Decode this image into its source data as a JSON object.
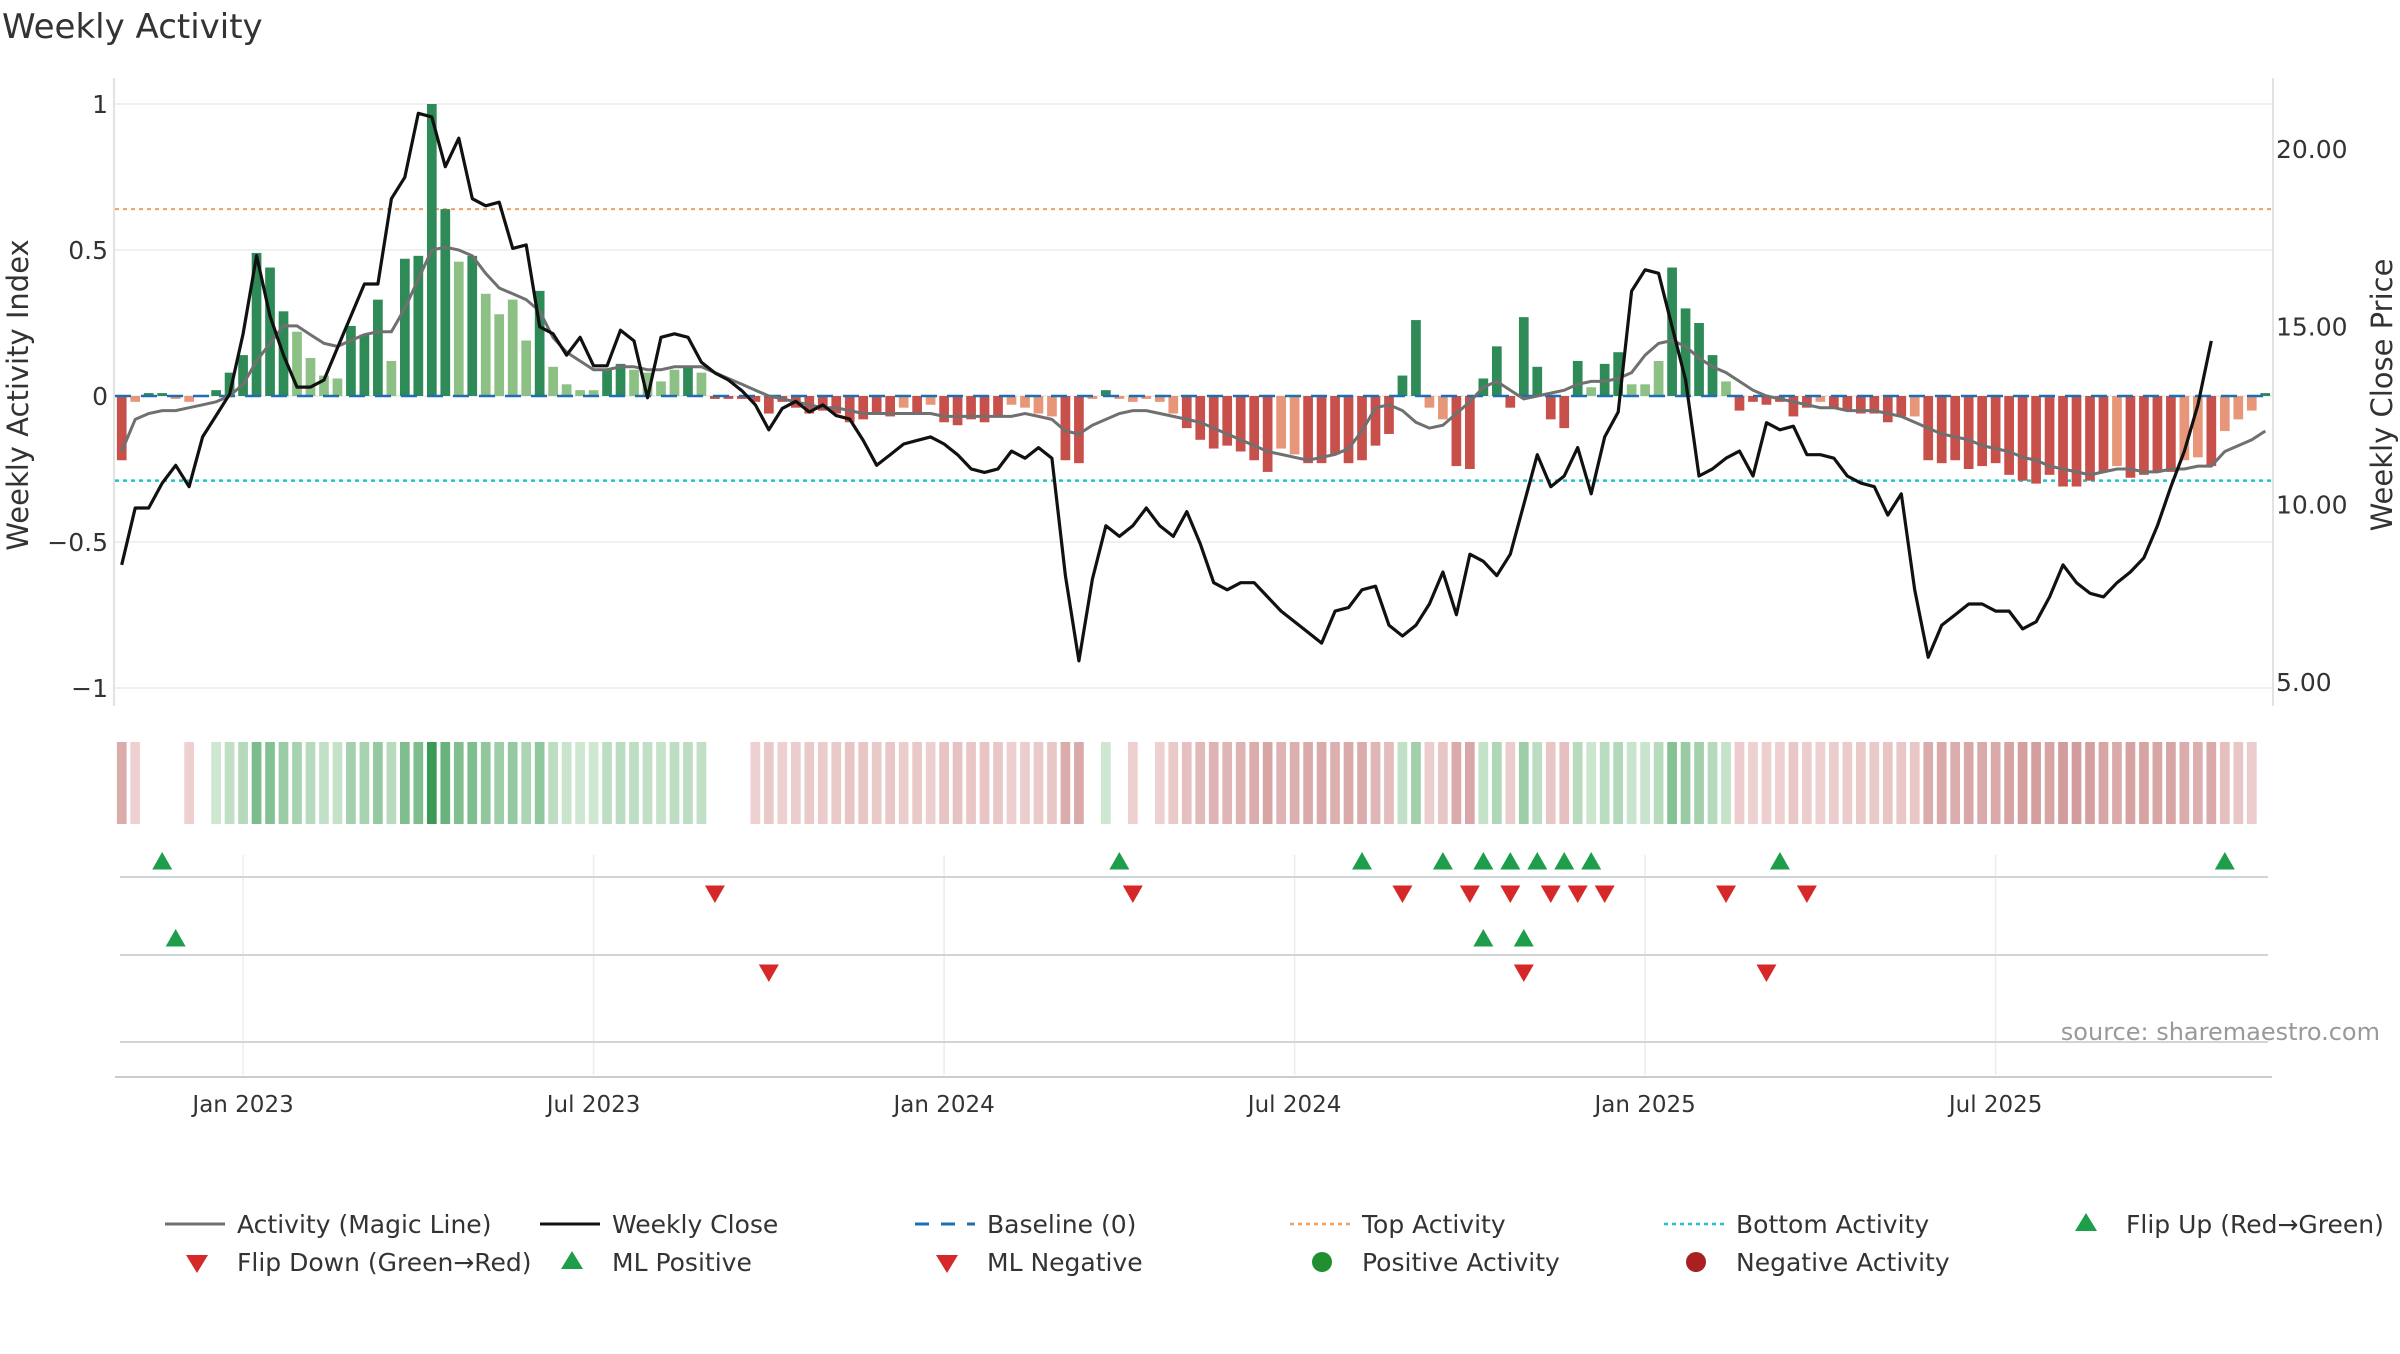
{
  "chart_data": {
    "type": "bar",
    "title": "Weekly Activity",
    "ylabel_left": "Weekly Activity Index",
    "ylabel_right": "Weekly Close Price",
    "source": "source: sharemaestro.com",
    "ylim_left": [
      -1.1,
      1.1
    ],
    "ylim_right": [
      4.5,
      22.5
    ],
    "left_ticks": [
      {
        "v": 1,
        "label": "1"
      },
      {
        "v": 0.5,
        "label": "0.5"
      },
      {
        "v": 0,
        "label": "0"
      },
      {
        "v": -0.5,
        "label": "−0.5"
      },
      {
        "v": -1,
        "label": "−1"
      }
    ],
    "right_ticks": [
      {
        "v": 20,
        "label": "20.00"
      },
      {
        "v": 15,
        "label": "15.00"
      },
      {
        "v": 10,
        "label": "10.00"
      },
      {
        "v": 5,
        "label": "5.00"
      }
    ],
    "x_ticks": [
      {
        "i": 9,
        "label": "Jan 2023"
      },
      {
        "i": 35,
        "label": "Jul 2023"
      },
      {
        "i": 61,
        "label": "Jan 2024"
      },
      {
        "i": 87,
        "label": "Jul 2024"
      },
      {
        "i": 113,
        "label": "Jan 2025"
      },
      {
        "i": 139,
        "label": "Jul 2025"
      }
    ],
    "top_activity": 0.64,
    "bottom_activity": -0.29,
    "activity": [
      -0.22,
      -0.02,
      0.01,
      0.01,
      -0.01,
      -0.02,
      0,
      0.02,
      0.08,
      0.14,
      0.49,
      0.44,
      0.29,
      0.22,
      0.13,
      0.07,
      0.06,
      0.24,
      0.21,
      0.33,
      0.12,
      0.47,
      0.48,
      1.0,
      0.64,
      0.46,
      0.48,
      0.35,
      0.28,
      0.33,
      0.19,
      0.36,
      0.1,
      0.04,
      0.02,
      0.02,
      0.09,
      0.11,
      0.09,
      0.08,
      0.05,
      0.09,
      0.1,
      0.08,
      -0.01,
      -0.01,
      -0.01,
      -0.02,
      -0.06,
      -0.02,
      -0.04,
      -0.06,
      -0.05,
      -0.06,
      -0.09,
      -0.08,
      -0.06,
      -0.07,
      -0.04,
      -0.06,
      -0.03,
      -0.09,
      -0.1,
      -0.08,
      -0.09,
      -0.07,
      -0.03,
      -0.04,
      -0.06,
      -0.07,
      -0.22,
      -0.23,
      -0.01,
      0.02,
      -0.01,
      -0.02,
      -0.01,
      -0.02,
      -0.06,
      -0.11,
      -0.15,
      -0.18,
      -0.17,
      -0.19,
      -0.22,
      -0.26,
      -0.18,
      -0.2,
      -0.23,
      -0.23,
      -0.2,
      -0.23,
      -0.22,
      -0.17,
      -0.13,
      0.07,
      0.26,
      -0.04,
      -0.08,
      -0.24,
      -0.25,
      0.06,
      0.17,
      -0.04,
      0.27,
      0.1,
      -0.08,
      -0.11,
      0.12,
      0.03,
      0.11,
      0.15,
      0.04,
      0.04,
      0.12,
      0.44,
      0.3,
      0.25,
      0.14,
      0.05,
      -0.05,
      -0.02,
      -0.03,
      -0.02,
      -0.07,
      -0.04,
      -0.02,
      -0.04,
      -0.05,
      -0.06,
      -0.06,
      -0.09,
      -0.07,
      -0.07,
      -0.22,
      -0.23,
      -0.22,
      -0.25,
      -0.24,
      -0.23,
      -0.27,
      -0.29,
      -0.3,
      -0.27,
      -0.31,
      -0.31,
      -0.29,
      -0.26,
      -0.24,
      -0.28,
      -0.27,
      -0.26,
      -0.26,
      -0.22,
      -0.21,
      -0.24,
      -0.12,
      -0.08,
      -0.05,
      0.01
    ],
    "magic_line": [
      -0.19,
      -0.08,
      -0.06,
      -0.05,
      -0.05,
      -0.04,
      -0.03,
      -0.02,
      0.0,
      0.04,
      0.12,
      0.18,
      0.24,
      0.24,
      0.21,
      0.18,
      0.17,
      0.19,
      0.21,
      0.22,
      0.22,
      0.3,
      0.4,
      0.5,
      0.51,
      0.5,
      0.48,
      0.42,
      0.37,
      0.35,
      0.33,
      0.29,
      0.2,
      0.15,
      0.12,
      0.09,
      0.09,
      0.1,
      0.1,
      0.09,
      0.09,
      0.1,
      0.1,
      0.1,
      0.08,
      0.06,
      0.04,
      0.02,
      0.0,
      -0.01,
      -0.02,
      -0.03,
      -0.04,
      -0.04,
      -0.05,
      -0.06,
      -0.06,
      -0.06,
      -0.06,
      -0.06,
      -0.06,
      -0.07,
      -0.07,
      -0.07,
      -0.07,
      -0.07,
      -0.07,
      -0.06,
      -0.07,
      -0.08,
      -0.12,
      -0.13,
      -0.1,
      -0.08,
      -0.06,
      -0.05,
      -0.05,
      -0.06,
      -0.07,
      -0.08,
      -0.09,
      -0.11,
      -0.13,
      -0.15,
      -0.17,
      -0.19,
      -0.2,
      -0.21,
      -0.22,
      -0.21,
      -0.2,
      -0.18,
      -0.12,
      -0.04,
      -0.03,
      -0.05,
      -0.09,
      -0.11,
      -0.1,
      -0.06,
      -0.02,
      0.03,
      0.05,
      0.02,
      -0.01,
      0.0,
      0.01,
      0.02,
      0.04,
      0.05,
      0.05,
      0.06,
      0.08,
      0.14,
      0.18,
      0.19,
      0.17,
      0.13,
      0.1,
      0.08,
      0.05,
      0.02,
      0.0,
      -0.01,
      -0.02,
      -0.03,
      -0.04,
      -0.04,
      -0.05,
      -0.05,
      -0.05,
      -0.06,
      -0.07,
      -0.09,
      -0.11,
      -0.13,
      -0.14,
      -0.15,
      -0.17,
      -0.18,
      -0.19,
      -0.21,
      -0.22,
      -0.24,
      -0.25,
      -0.26,
      -0.27,
      -0.26,
      -0.25,
      -0.25,
      -0.26,
      -0.26,
      -0.25,
      -0.25,
      -0.24,
      -0.24,
      -0.19,
      -0.17,
      -0.15,
      -0.12
    ],
    "weekly_close": [
      8.3,
      9.9,
      9.9,
      10.6,
      11.1,
      10.5,
      11.9,
      12.5,
      13.1,
      14.8,
      17.0,
      15.3,
      14.2,
      13.3,
      13.3,
      13.5,
      14.4,
      15.3,
      16.2,
      16.2,
      18.6,
      19.2,
      21.0,
      20.9,
      19.5,
      20.3,
      18.6,
      18.4,
      18.5,
      17.2,
      17.3,
      15.0,
      14.8,
      14.2,
      14.7,
      13.9,
      13.9,
      14.9,
      14.6,
      13.0,
      14.7,
      14.8,
      14.7,
      14.0,
      13.7,
      13.5,
      13.2,
      12.8,
      12.1,
      12.7,
      12.9,
      12.6,
      12.8,
      12.5,
      12.4,
      11.8,
      11.1,
      11.4,
      11.7,
      11.8,
      11.9,
      11.7,
      11.4,
      11.0,
      10.9,
      11.0,
      11.5,
      11.3,
      11.6,
      11.3,
      8.0,
      5.6,
      7.9,
      9.4,
      9.1,
      9.4,
      9.9,
      9.4,
      9.1,
      9.8,
      8.9,
      7.8,
      7.6,
      7.8,
      7.8,
      7.4,
      7.0,
      6.7,
      6.4,
      6.1,
      7.0,
      7.1,
      7.6,
      7.7,
      6.6,
      6.3,
      6.6,
      7.2,
      8.1,
      6.9,
      8.6,
      8.4,
      8.0,
      8.6,
      10.0,
      11.4,
      10.5,
      10.8,
      11.6,
      10.3,
      11.9,
      12.6,
      16.0,
      16.6,
      16.5,
      15.0,
      13.5,
      10.8,
      11.0,
      11.3,
      11.5,
      10.8,
      12.3,
      12.1,
      12.2,
      11.4,
      11.4,
      11.3,
      10.8,
      10.6,
      10.5,
      9.7,
      10.3,
      7.6,
      5.7,
      6.6,
      6.9,
      7.2,
      7.2,
      7.0,
      7.0,
      6.5,
      6.7,
      7.4,
      8.3,
      7.8,
      7.5,
      7.4,
      7.8,
      8.1,
      8.5,
      9.4,
      10.5,
      11.5,
      12.8,
      14.6
    ],
    "flip_up": [
      3,
      74,
      92,
      98,
      101,
      103,
      105,
      107,
      109,
      123,
      156
    ],
    "flip_down": [
      44,
      75,
      95,
      100,
      103,
      106,
      108,
      110,
      119,
      125
    ],
    "ml_positive": [
      4,
      101,
      104
    ],
    "ml_negative": [
      48,
      104,
      122
    ],
    "legend": [
      {
        "key": "magic",
        "label": "Activity (Magic Line)"
      },
      {
        "key": "close",
        "label": "Weekly Close"
      },
      {
        "key": "baseline",
        "label": "Baseline (0)"
      },
      {
        "key": "top",
        "label": "Top Activity"
      },
      {
        "key": "bottom",
        "label": "Bottom Activity"
      },
      {
        "key": "flip_up",
        "label": "Flip Up (Red→Green)"
      },
      {
        "key": "flip_down",
        "label": "Flip Down (Green→Red)"
      },
      {
        "key": "ml_pos",
        "label": "ML Positive"
      },
      {
        "key": "ml_neg",
        "label": "ML Negative"
      },
      {
        "key": "pos_act",
        "label": "Positive Activity"
      },
      {
        "key": "neg_act",
        "label": "Negative Activity"
      }
    ],
    "colors": {
      "pos_strong": "#2e8b57",
      "pos_light": "#8cc084",
      "neg_strong": "#c8504b",
      "neg_light": "#e8967a",
      "magic": "#707070",
      "close": "#111111",
      "baseline": "#1f6fb0",
      "top": "#f0a060",
      "bottom": "#22c1c8",
      "flip_up": "#1e9e4a",
      "flip_down": "#d62828",
      "pos_dot": "#1f8f2f",
      "neg_dot": "#a82020"
    }
  }
}
